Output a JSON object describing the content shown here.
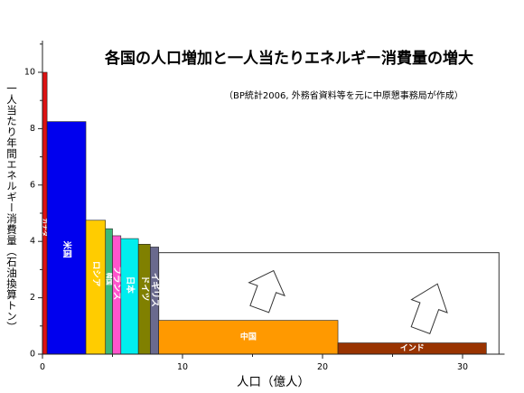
{
  "title": "各国の人口増加と一人当たりエネルギー消費量の増大",
  "source_note": "（BP統計2006, 外務省資料等を元に中原懇事務局が作成）",
  "chart_data": {
    "type": "bar",
    "subtype": "variable-width",
    "xlabel": "人口（億人）",
    "ylabel": "一人当たり年間エネルギー消費量（石油換算トン）",
    "xlim": [
      0,
      33
    ],
    "ylim": [
      0,
      11
    ],
    "xticks": [
      0,
      10,
      20,
      30
    ],
    "yticks": [
      0,
      2,
      4,
      6,
      8,
      10
    ],
    "grid": false,
    "legend": "none",
    "bars": [
      {
        "label": "カナダ",
        "x_start": 0.0,
        "x_end": 0.33,
        "value": 10.0,
        "color": "#dd1111",
        "label_color": "#ffffff"
      },
      {
        "label": "米国",
        "x_start": 0.33,
        "x_end": 3.1,
        "value": 8.25,
        "color": "#0000ee",
        "label_color": "#ffffff"
      },
      {
        "label": "ロシア",
        "x_start": 3.1,
        "x_end": 4.5,
        "value": 4.75,
        "color": "#ffcc00",
        "label_color": "#ffffff"
      },
      {
        "label": "韓国",
        "x_start": 4.5,
        "x_end": 5.0,
        "value": 4.45,
        "color": "#3cb878",
        "label_color": "#ffffff"
      },
      {
        "label": "フランス",
        "x_start": 5.0,
        "x_end": 5.6,
        "value": 4.2,
        "color": "#ff55cc",
        "label_color": "#ffffff"
      },
      {
        "label": "日本",
        "x_start": 5.6,
        "x_end": 6.85,
        "value": 4.1,
        "color": "#00eeee",
        "label_color": "#ffffff"
      },
      {
        "label": "ドイツ",
        "x_start": 6.85,
        "x_end": 7.7,
        "value": 3.9,
        "color": "#808000",
        "label_color": "#ffffff"
      },
      {
        "label": "イギリス",
        "x_start": 7.7,
        "x_end": 8.3,
        "value": 3.8,
        "color": "#6a6a8e",
        "label_color": "#ffffff"
      },
      {
        "label": "中国",
        "x_start": 8.3,
        "x_end": 21.1,
        "value": 1.2,
        "color": "#ff9900",
        "label_color": "#ffffff"
      },
      {
        "label": "インド",
        "x_start": 21.1,
        "x_end": 31.7,
        "value": 0.4,
        "color": "#993300",
        "label_color": "#ffffff"
      }
    ],
    "annotations": [
      {
        "kind": "outline_rect",
        "x_start": 8.3,
        "x_end": 32.6,
        "y_top": 3.6
      },
      {
        "kind": "up_arrow",
        "x_center": 15.5,
        "y_bottom": 1.6,
        "y_top": 3.05
      },
      {
        "kind": "up_arrow",
        "x_center": 27.0,
        "y_bottom": 0.85,
        "y_top": 2.6
      }
    ]
  }
}
